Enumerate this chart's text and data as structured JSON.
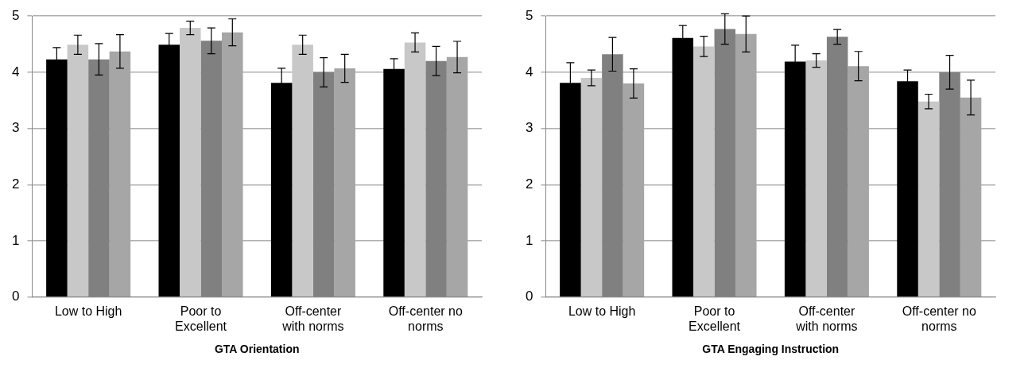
{
  "chart_data": [
    {
      "type": "bar",
      "xlabel": "GTA Orientation",
      "categories": [
        "Low to High",
        "Poor to Excellent",
        "Off-center with norms",
        "Off-center no norms"
      ],
      "ylim": [
        0,
        5
      ],
      "yticks": [
        0,
        1,
        2,
        3,
        4,
        5
      ],
      "grid": "y",
      "series": [
        {
          "color": "#000000",
          "values": [
            4.23,
            4.49,
            3.81,
            4.06
          ],
          "errors": [
            0.21,
            0.2,
            0.26,
            0.18
          ]
        },
        {
          "color": "#c8c8c8",
          "values": [
            4.49,
            4.79,
            4.49,
            4.53
          ],
          "errors": [
            0.17,
            0.12,
            0.17,
            0.17
          ]
        },
        {
          "color": "#808080",
          "values": [
            4.23,
            4.56,
            4.0,
            4.2
          ],
          "errors": [
            0.28,
            0.23,
            0.26,
            0.26
          ]
        },
        {
          "color": "#a6a6a6",
          "values": [
            4.37,
            4.71,
            4.07,
            4.27
          ],
          "errors": [
            0.3,
            0.24,
            0.25,
            0.28
          ]
        }
      ]
    },
    {
      "type": "bar",
      "xlabel": "GTA Engaging Instruction",
      "categories": [
        "Low to High",
        "Poor to Excellent",
        "Off-center with norms",
        "Off-center no norms"
      ],
      "ylim": [
        0,
        5
      ],
      "yticks": [
        0,
        1,
        2,
        3,
        4,
        5
      ],
      "grid": "y",
      "series": [
        {
          "color": "#000000",
          "values": [
            3.81,
            4.61,
            4.19,
            3.84
          ],
          "errors": [
            0.36,
            0.22,
            0.29,
            0.2
          ]
        },
        {
          "color": "#c8c8c8",
          "values": [
            3.9,
            4.46,
            4.21,
            3.48
          ],
          "errors": [
            0.14,
            0.18,
            0.12,
            0.13
          ]
        },
        {
          "color": "#808080",
          "values": [
            4.32,
            4.77,
            4.63,
            4.0
          ],
          "errors": [
            0.3,
            0.27,
            0.13,
            0.3
          ]
        },
        {
          "color": "#a6a6a6",
          "values": [
            3.8,
            4.68,
            4.11,
            3.55
          ],
          "errors": [
            0.26,
            0.32,
            0.26,
            0.31
          ]
        }
      ]
    }
  ]
}
